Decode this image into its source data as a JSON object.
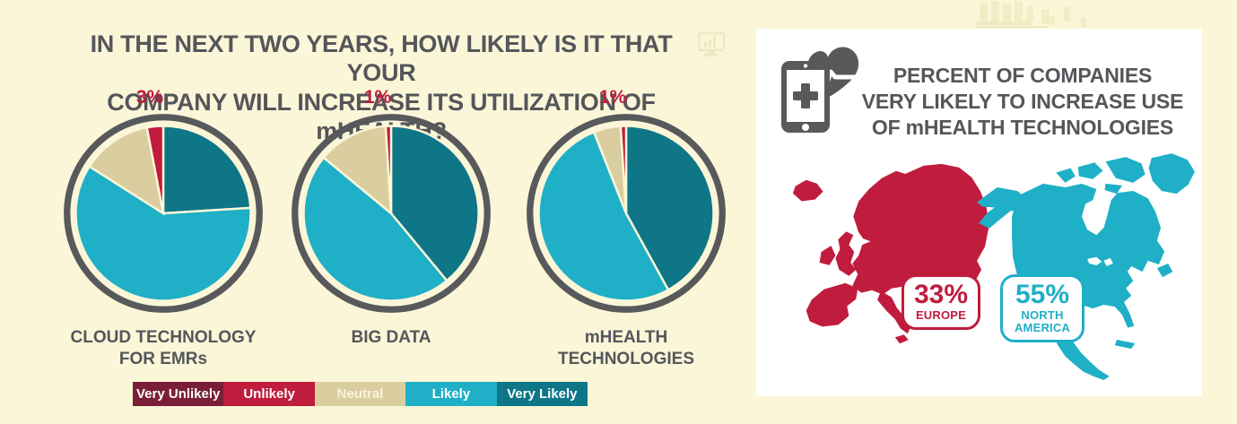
{
  "title": {
    "line1": "IN THE NEXT TWO YEARS, HOW LIKELY IS IT THAT YOUR",
    "line2": "COMPANY WILL INCREASE ITS UTILIZATION OF  mHEALTH?"
  },
  "colors": {
    "background": "#FBF6D8",
    "card": "#FFFFFF",
    "ink": "#54565A",
    "ring": "#58595B",
    "maroon": "#7A1F37",
    "crimson": "#C01C3E",
    "tan": "#DACEA0",
    "cyan": "#1FAFC7",
    "teal": "#0E7687"
  },
  "chart_data": [
    {
      "type": "pie",
      "title": "CLOUD TECHNOLOGY FOR EMRs",
      "start": "12 o'clock",
      "direction": "clockwise",
      "slices": [
        {
          "label": "Very Likely",
          "value": 24,
          "color": "#0E7687"
        },
        {
          "label": "Likely",
          "value": 60,
          "color": "#1FAFC7"
        },
        {
          "label": "Neutral",
          "value": 13,
          "color": "#DACEA0"
        },
        {
          "label": "Unlikely",
          "value": 3,
          "color": "#C01C3E"
        }
      ]
    },
    {
      "type": "pie",
      "title": "BIG DATA",
      "start": "12 o'clock",
      "direction": "clockwise",
      "slices": [
        {
          "label": "Very Likely",
          "value": 39,
          "color": "#0E7687"
        },
        {
          "label": "Likely",
          "value": 47,
          "color": "#1FAFC7"
        },
        {
          "label": "Neutral",
          "value": 13,
          "color": "#DACEA0"
        },
        {
          "label": "Unlikely",
          "value": 1,
          "color": "#C01C3E"
        }
      ]
    },
    {
      "type": "pie",
      "title": "mHEALTH TECHNOLOGIES",
      "start": "12 o'clock",
      "direction": "clockwise",
      "slices": [
        {
          "label": "Very Likely",
          "value": 42,
          "color": "#0E7687"
        },
        {
          "label": "Likely",
          "value": 52,
          "color": "#1FAFC7"
        },
        {
          "label": "Neutral",
          "value": 5,
          "color": "#DACEA0"
        },
        {
          "label": "Unlikely",
          "value": 1,
          "color": "#C01C3E"
        }
      ]
    },
    {
      "type": "map-stat",
      "title": "PERCENT OF COMPANIES VERY LIKELY TO INCREASE USE OF mHEALTH TECHNOLOGIES",
      "stats": [
        {
          "region": "EUROPE",
          "value": "33%",
          "color": "#C01C3E"
        },
        {
          "region": "NORTH AMERICA",
          "value": "55%",
          "color": "#1FAFC7"
        }
      ]
    }
  ],
  "legend": {
    "items": [
      {
        "label": "Very Unlikely",
        "color": "#7A1F37",
        "text_color": "#FFFFFF"
      },
      {
        "label": "Unlikely",
        "color": "#C01C3E",
        "text_color": "#FFFFFF"
      },
      {
        "label": "Neutral",
        "color": "#DACEA0",
        "text_color": "#F8F4DC"
      },
      {
        "label": "Likely",
        "color": "#1FAFC7",
        "text_color": "#FFFFFF"
      },
      {
        "label": "Very Likely",
        "color": "#0E7687",
        "text_color": "#FFFFFF"
      }
    ]
  },
  "right_panel": {
    "heading": {
      "line1": "PERCENT OF COMPANIES",
      "line2": "VERY LIKELY TO INCREASE USE",
      "line3": "OF mHEALTH TECHNOLOGIES"
    },
    "europe": {
      "value": "33%",
      "region": "EUROPE"
    },
    "north_america": {
      "value": "55%",
      "region": "NORTH AMERICA"
    }
  }
}
